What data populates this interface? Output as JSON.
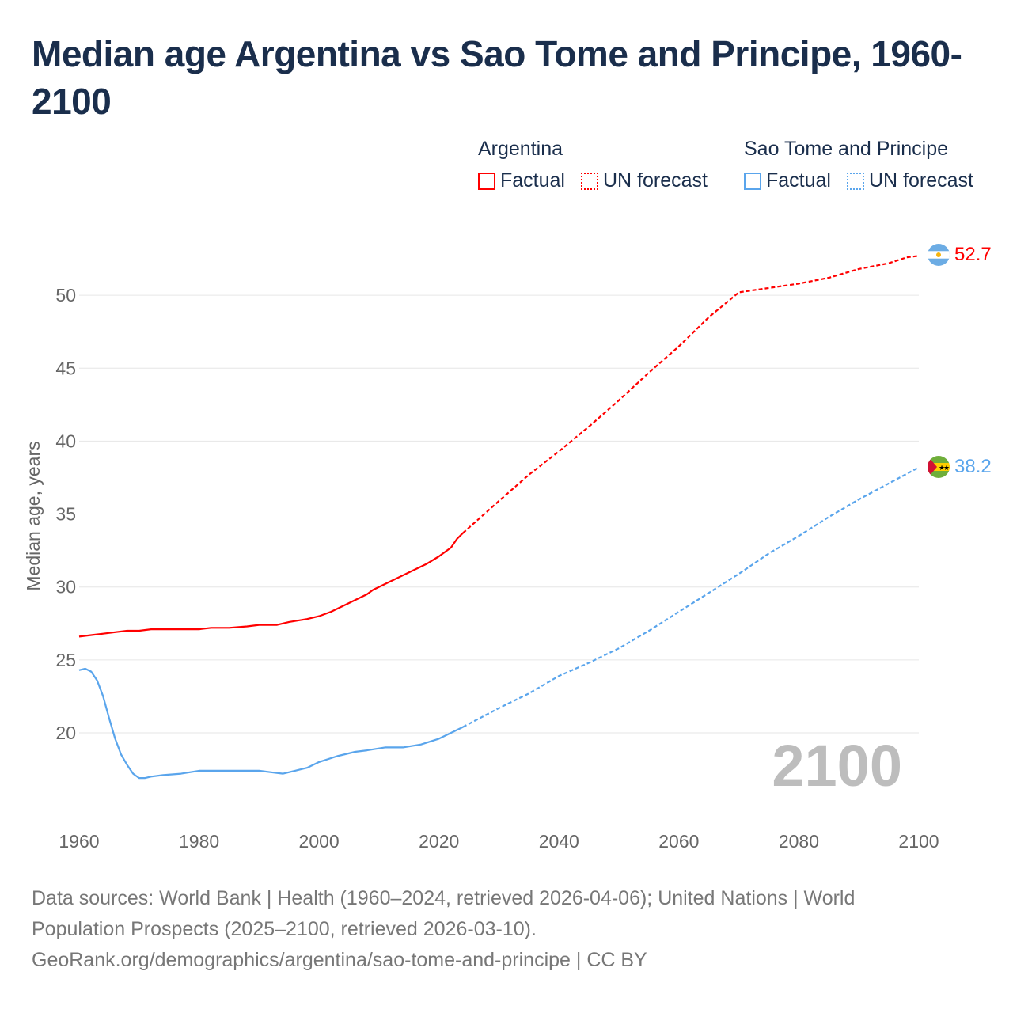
{
  "title": "Median age Argentina vs Sao Tome and Principe, 1960-2100",
  "legend": {
    "groups": [
      {
        "name": "Argentina",
        "factual": "Factual",
        "forecast": "UN forecast",
        "color": "#ff0000"
      },
      {
        "name": "Sao Tome and Principe",
        "factual": "Factual",
        "forecast": "UN forecast",
        "color": "#5aa5ec"
      }
    ]
  },
  "year_watermark": "2100",
  "footer": {
    "line1": "Data sources: World Bank | Health (1960–2024, retrieved 2026-04-06); United Nations | World",
    "line2": "Population Prospects (2025–2100, retrieved 2026-03-10).",
    "line3": "GeoRank.org/demographics/argentina/sao-tome-and-principe | CC BY"
  },
  "chart_data": {
    "type": "line",
    "title": "Median age Argentina vs Sao Tome and Principe, 1960-2100",
    "xlabel": "",
    "ylabel": "Median age, years",
    "xlim": [
      1960,
      2100
    ],
    "ylim": [
      15,
      53
    ],
    "x_ticks": [
      "1960",
      "1980",
      "2000",
      "2020",
      "2040",
      "2060",
      "2080",
      "2100"
    ],
    "y_ticks": [
      "20",
      "25",
      "30",
      "35",
      "40",
      "45",
      "50"
    ],
    "grid": true,
    "series": [
      {
        "name": "Argentina",
        "color": "#ff0000",
        "end_label": "52.7",
        "factual": [
          [
            1960,
            26.6
          ],
          [
            1962,
            26.7
          ],
          [
            1964,
            26.8
          ],
          [
            1966,
            26.9
          ],
          [
            1968,
            27.0
          ],
          [
            1970,
            27.0
          ],
          [
            1972,
            27.1
          ],
          [
            1975,
            27.1
          ],
          [
            1980,
            27.1
          ],
          [
            1982,
            27.2
          ],
          [
            1985,
            27.2
          ],
          [
            1988,
            27.3
          ],
          [
            1990,
            27.4
          ],
          [
            1993,
            27.4
          ],
          [
            1995,
            27.6
          ],
          [
            1998,
            27.8
          ],
          [
            2000,
            28.0
          ],
          [
            2002,
            28.3
          ],
          [
            2005,
            28.9
          ],
          [
            2008,
            29.5
          ],
          [
            2009,
            29.8
          ],
          [
            2012,
            30.4
          ],
          [
            2015,
            31.0
          ],
          [
            2018,
            31.6
          ],
          [
            2020,
            32.1
          ],
          [
            2022,
            32.7
          ],
          [
            2023,
            33.3
          ],
          [
            2024,
            33.7
          ]
        ],
        "forecast": [
          [
            2024,
            33.7
          ],
          [
            2030,
            35.9
          ],
          [
            2035,
            37.7
          ],
          [
            2040,
            39.3
          ],
          [
            2045,
            41.0
          ],
          [
            2050,
            42.8
          ],
          [
            2055,
            44.7
          ],
          [
            2060,
            46.5
          ],
          [
            2065,
            48.5
          ],
          [
            2070,
            50.2
          ],
          [
            2075,
            50.5
          ],
          [
            2080,
            50.8
          ],
          [
            2085,
            51.2
          ],
          [
            2090,
            51.8
          ],
          [
            2095,
            52.2
          ],
          [
            2098,
            52.6
          ],
          [
            2100,
            52.7
          ]
        ]
      },
      {
        "name": "Sao Tome and Principe",
        "color": "#5aa5ec",
        "end_label": "38.2",
        "factual": [
          [
            1960,
            24.3
          ],
          [
            1961,
            24.4
          ],
          [
            1962,
            24.2
          ],
          [
            1963,
            23.6
          ],
          [
            1964,
            22.5
          ],
          [
            1965,
            21.0
          ],
          [
            1966,
            19.6
          ],
          [
            1967,
            18.5
          ],
          [
            1968,
            17.8
          ],
          [
            1969,
            17.2
          ],
          [
            1970,
            16.9
          ],
          [
            1971,
            16.9
          ],
          [
            1972,
            17.0
          ],
          [
            1974,
            17.1
          ],
          [
            1977,
            17.2
          ],
          [
            1980,
            17.4
          ],
          [
            1985,
            17.4
          ],
          [
            1990,
            17.4
          ],
          [
            1992,
            17.3
          ],
          [
            1994,
            17.2
          ],
          [
            1996,
            17.4
          ],
          [
            1998,
            17.6
          ],
          [
            2000,
            18.0
          ],
          [
            2003,
            18.4
          ],
          [
            2006,
            18.7
          ],
          [
            2008,
            18.8
          ],
          [
            2011,
            19.0
          ],
          [
            2014,
            19.0
          ],
          [
            2017,
            19.2
          ],
          [
            2020,
            19.6
          ],
          [
            2022,
            20.0
          ],
          [
            2024,
            20.4
          ]
        ],
        "forecast": [
          [
            2024,
            20.4
          ],
          [
            2030,
            21.7
          ],
          [
            2035,
            22.7
          ],
          [
            2040,
            23.9
          ],
          [
            2045,
            24.8
          ],
          [
            2050,
            25.8
          ],
          [
            2055,
            27.0
          ],
          [
            2060,
            28.3
          ],
          [
            2065,
            29.6
          ],
          [
            2070,
            30.9
          ],
          [
            2075,
            32.3
          ],
          [
            2080,
            33.5
          ],
          [
            2085,
            34.8
          ],
          [
            2090,
            36.0
          ],
          [
            2095,
            37.1
          ],
          [
            2100,
            38.2
          ]
        ]
      }
    ]
  }
}
